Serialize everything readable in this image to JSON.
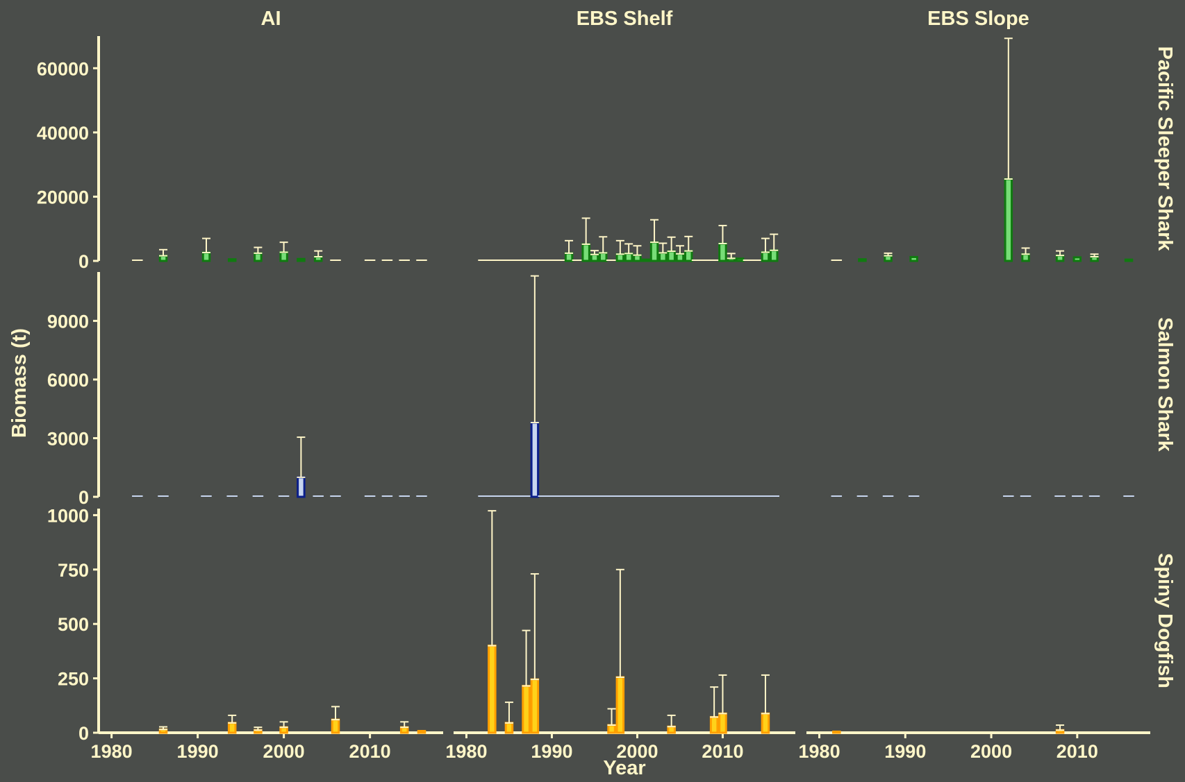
{
  "chart_data": {
    "type": "bar",
    "title": "",
    "xlabel": "Year",
    "ylabel": "Biomass (t)",
    "columns": [
      "AI",
      "EBS Shelf",
      "EBS Slope"
    ],
    "rows": [
      "Pacific Sleeper Shark",
      "Salmon Shark",
      "Spiny Dogfish"
    ],
    "xlim": [
      1978.5,
      2018.5
    ],
    "x_ticks": [
      1980,
      1990,
      2000,
      2010
    ],
    "y_axes": [
      {
        "ylim": [
          0,
          70000
        ],
        "ticks": [
          0,
          20000,
          40000,
          60000
        ]
      },
      {
        "ylim": [
          0,
          11500
        ],
        "ticks": [
          0,
          3000,
          6000,
          9000
        ]
      },
      {
        "ylim": [
          0,
          1030
        ],
        "ticks": [
          0,
          250,
          500,
          750,
          1000
        ]
      }
    ],
    "colors": {
      "Pacific Sleeper Shark": {
        "fill": "#77dd77",
        "edge": "#107a10"
      },
      "Salmon Shark": {
        "fill": "#c8d6f0",
        "edge": "#0b1f8a"
      },
      "Spiny Dogfish": {
        "fill": "#ffd21a",
        "edge": "#ff9f00"
      },
      "text": "#fff6c8",
      "background": "#4a4d4a"
    },
    "panels": {
      "Pacific Sleeper Shark": {
        "AI": [
          {
            "x": 1983,
            "y": 50,
            "hi": null
          },
          {
            "x": 1986,
            "y": 1600,
            "hi": 3500
          },
          {
            "x": 1991,
            "y": 2600,
            "hi": 7000
          },
          {
            "x": 1994,
            "y": 500,
            "hi": null
          },
          {
            "x": 1997,
            "y": 2400,
            "hi": 4200
          },
          {
            "x": 2000,
            "y": 2700,
            "hi": 5800
          },
          {
            "x": 2002,
            "y": 600,
            "hi": null
          },
          {
            "x": 2004,
            "y": 1300,
            "hi": 3100
          },
          {
            "x": 2006,
            "y": 200,
            "hi": null
          },
          {
            "x": 2010,
            "y": 150,
            "hi": null
          },
          {
            "x": 2012,
            "y": 80,
            "hi": null
          },
          {
            "x": 2014,
            "y": 80,
            "hi": null
          },
          {
            "x": 2016,
            "y": 60,
            "hi": null
          }
        ],
        "EBS Shelf": [
          {
            "x": 1982,
            "y": 0,
            "hi": null
          },
          {
            "x": 1983,
            "y": 0,
            "hi": null
          },
          {
            "x": 1984,
            "y": 0,
            "hi": null
          },
          {
            "x": 1985,
            "y": 0,
            "hi": null
          },
          {
            "x": 1986,
            "y": 0,
            "hi": null
          },
          {
            "x": 1987,
            "y": 0,
            "hi": null
          },
          {
            "x": 1988,
            "y": 0,
            "hi": null
          },
          {
            "x": 1989,
            "y": 0,
            "hi": null
          },
          {
            "x": 1990,
            "y": 0,
            "hi": null
          },
          {
            "x": 1991,
            "y": 0,
            "hi": null
          },
          {
            "x": 1992,
            "y": 2400,
            "hi": 6300
          },
          {
            "x": 1993,
            "y": 300,
            "hi": null
          },
          {
            "x": 1994,
            "y": 5200,
            "hi": 13300
          },
          {
            "x": 1995,
            "y": 2000,
            "hi": 3200
          },
          {
            "x": 1996,
            "y": 2500,
            "hi": 7500
          },
          {
            "x": 1997,
            "y": 300,
            "hi": null
          },
          {
            "x": 1998,
            "y": 2100,
            "hi": 6300
          },
          {
            "x": 1999,
            "y": 2300,
            "hi": 5300
          },
          {
            "x": 2000,
            "y": 1800,
            "hi": 4700
          },
          {
            "x": 2001,
            "y": 400,
            "hi": null
          },
          {
            "x": 2002,
            "y": 5800,
            "hi": 12800
          },
          {
            "x": 2003,
            "y": 2500,
            "hi": 5500
          },
          {
            "x": 2004,
            "y": 3000,
            "hi": 7400
          },
          {
            "x": 2005,
            "y": 2200,
            "hi": 4700
          },
          {
            "x": 2006,
            "y": 3100,
            "hi": 7600
          },
          {
            "x": 2007,
            "y": 0,
            "hi": null
          },
          {
            "x": 2008,
            "y": 0,
            "hi": null
          },
          {
            "x": 2009,
            "y": 0,
            "hi": null
          },
          {
            "x": 2010,
            "y": 5400,
            "hi": 11000
          },
          {
            "x": 2011,
            "y": 800,
            "hi": 2300
          },
          {
            "x": 2012,
            "y": 700,
            "hi": null
          },
          {
            "x": 2013,
            "y": 0,
            "hi": null
          },
          {
            "x": 2014,
            "y": 0,
            "hi": null
          },
          {
            "x": 2015,
            "y": 2700,
            "hi": 7000
          },
          {
            "x": 2016,
            "y": 3300,
            "hi": 8300
          }
        ],
        "EBS Slope": [
          {
            "x": 1982,
            "y": 200,
            "hi": null
          },
          {
            "x": 1985,
            "y": 500,
            "hi": null
          },
          {
            "x": 1988,
            "y": 1600,
            "hi": 2400
          },
          {
            "x": 1991,
            "y": 1200,
            "hi": null
          },
          {
            "x": 2002,
            "y": 25500,
            "hi": 69300
          },
          {
            "x": 2004,
            "y": 2100,
            "hi": 4000
          },
          {
            "x": 2008,
            "y": 1700,
            "hi": 3100
          },
          {
            "x": 2010,
            "y": 1100,
            "hi": null
          },
          {
            "x": 2012,
            "y": 1300,
            "hi": 2100
          },
          {
            "x": 2016,
            "y": 400,
            "hi": null
          }
        ]
      },
      "Salmon Shark": {
        "AI": [
          {
            "x": 1983,
            "y": 0,
            "hi": null
          },
          {
            "x": 1986,
            "y": 0,
            "hi": null
          },
          {
            "x": 1991,
            "y": 0,
            "hi": null
          },
          {
            "x": 1994,
            "y": 0,
            "hi": null
          },
          {
            "x": 1997,
            "y": 0,
            "hi": null
          },
          {
            "x": 2000,
            "y": 0,
            "hi": null
          },
          {
            "x": 2002,
            "y": 1000,
            "hi": 3050
          },
          {
            "x": 2004,
            "y": 0,
            "hi": null
          },
          {
            "x": 2006,
            "y": 0,
            "hi": null
          },
          {
            "x": 2010,
            "y": 0,
            "hi": null
          },
          {
            "x": 2012,
            "y": 0,
            "hi": null
          },
          {
            "x": 2014,
            "y": 0,
            "hi": null
          },
          {
            "x": 2016,
            "y": 0,
            "hi": null
          }
        ],
        "EBS Shelf": [
          {
            "x": 1982,
            "y": 0,
            "hi": null
          },
          {
            "x": 1983,
            "y": 0,
            "hi": null
          },
          {
            "x": 1984,
            "y": 0,
            "hi": null
          },
          {
            "x": 1985,
            "y": 0,
            "hi": null
          },
          {
            "x": 1986,
            "y": 0,
            "hi": null
          },
          {
            "x": 1987,
            "y": 0,
            "hi": null
          },
          {
            "x": 1988,
            "y": 3800,
            "hi": 11300
          },
          {
            "x": 1989,
            "y": 0,
            "hi": null
          },
          {
            "x": 1990,
            "y": 0,
            "hi": null
          },
          {
            "x": 1991,
            "y": 0,
            "hi": null
          },
          {
            "x": 1992,
            "y": 0,
            "hi": null
          },
          {
            "x": 1993,
            "y": 0,
            "hi": null
          },
          {
            "x": 1994,
            "y": 0,
            "hi": null
          },
          {
            "x": 1995,
            "y": 0,
            "hi": null
          },
          {
            "x": 1996,
            "y": 0,
            "hi": null
          },
          {
            "x": 1997,
            "y": 0,
            "hi": null
          },
          {
            "x": 1998,
            "y": 0,
            "hi": null
          },
          {
            "x": 1999,
            "y": 0,
            "hi": null
          },
          {
            "x": 2000,
            "y": 0,
            "hi": null
          },
          {
            "x": 2001,
            "y": 0,
            "hi": null
          },
          {
            "x": 2002,
            "y": 0,
            "hi": null
          },
          {
            "x": 2003,
            "y": 0,
            "hi": null
          },
          {
            "x": 2004,
            "y": 0,
            "hi": null
          },
          {
            "x": 2005,
            "y": 0,
            "hi": null
          },
          {
            "x": 2006,
            "y": 0,
            "hi": null
          },
          {
            "x": 2007,
            "y": 0,
            "hi": null
          },
          {
            "x": 2008,
            "y": 0,
            "hi": null
          },
          {
            "x": 2009,
            "y": 0,
            "hi": null
          },
          {
            "x": 2010,
            "y": 0,
            "hi": null
          },
          {
            "x": 2011,
            "y": 0,
            "hi": null
          },
          {
            "x": 2012,
            "y": 0,
            "hi": null
          },
          {
            "x": 2013,
            "y": 0,
            "hi": null
          },
          {
            "x": 2014,
            "y": 0,
            "hi": null
          },
          {
            "x": 2015,
            "y": 0,
            "hi": null
          },
          {
            "x": 2016,
            "y": 0,
            "hi": null
          }
        ],
        "EBS Slope": [
          {
            "x": 1982,
            "y": 0,
            "hi": null
          },
          {
            "x": 1985,
            "y": 0,
            "hi": null
          },
          {
            "x": 1988,
            "y": 0,
            "hi": null
          },
          {
            "x": 1991,
            "y": 0,
            "hi": null
          },
          {
            "x": 2002,
            "y": 0,
            "hi": null
          },
          {
            "x": 2004,
            "y": 0,
            "hi": null
          },
          {
            "x": 2008,
            "y": 0,
            "hi": null
          },
          {
            "x": 2010,
            "y": 0,
            "hi": null
          },
          {
            "x": 2012,
            "y": 0,
            "hi": null
          },
          {
            "x": 2016,
            "y": 0,
            "hi": null
          }
        ]
      },
      "Spiny Dogfish": {
        "AI": [
          {
            "x": 1983,
            "y": 3,
            "hi": null
          },
          {
            "x": 1986,
            "y": 15,
            "hi": 27
          },
          {
            "x": 1994,
            "y": 45,
            "hi": 80
          },
          {
            "x": 1997,
            "y": 12,
            "hi": 25
          },
          {
            "x": 2000,
            "y": 25,
            "hi": 50
          },
          {
            "x": 2006,
            "y": 60,
            "hi": 120
          },
          {
            "x": 2014,
            "y": 25,
            "hi": 50
          },
          {
            "x": 2016,
            "y": 8,
            "hi": null
          }
        ],
        "EBS Shelf": [
          {
            "x": 1983,
            "y": 400,
            "hi": 1020
          },
          {
            "x": 1985,
            "y": 45,
            "hi": 140
          },
          {
            "x": 1987,
            "y": 215,
            "hi": 470
          },
          {
            "x": 1988,
            "y": 245,
            "hi": 730
          },
          {
            "x": 1997,
            "y": 35,
            "hi": 110
          },
          {
            "x": 1998,
            "y": 255,
            "hi": 750
          },
          {
            "x": 2004,
            "y": 28,
            "hi": 80
          },
          {
            "x": 2009,
            "y": 72,
            "hi": 210
          },
          {
            "x": 2010,
            "y": 88,
            "hi": 265
          },
          {
            "x": 2015,
            "y": 88,
            "hi": 265
          }
        ],
        "EBS Slope": [
          {
            "x": 1982,
            "y": 5,
            "hi": null
          },
          {
            "x": 1985,
            "y": 2,
            "hi": null
          },
          {
            "x": 2008,
            "y": 12,
            "hi": 35
          }
        ]
      }
    }
  }
}
